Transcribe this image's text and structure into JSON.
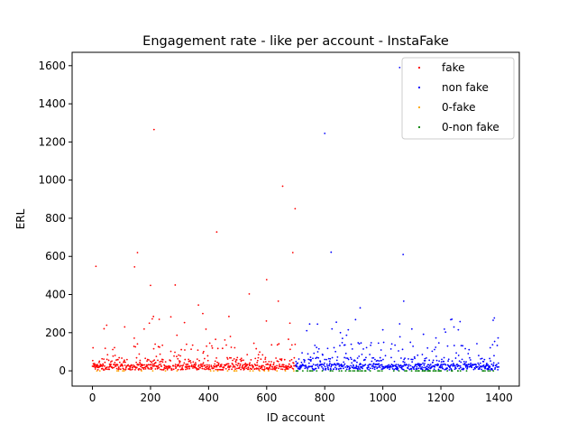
{
  "chart_data": {
    "type": "scatter",
    "title": "Engagement rate - like per account - InstaFake",
    "xlabel": "ID account",
    "ylabel": "ERL",
    "xlim": [
      -70,
      1470
    ],
    "ylim": [
      -80,
      1670
    ],
    "xticks": [
      "0",
      "200",
      "400",
      "600",
      "800",
      "1000",
      "1200",
      "1400"
    ],
    "yticks": [
      "0",
      "200",
      "400",
      "600",
      "800",
      "1000",
      "1200",
      "1400",
      "1600"
    ],
    "grid": false,
    "legend_position": "top-right",
    "series": [
      {
        "name": "fake",
        "color": "#ff0000",
        "x_range": [
          0,
          700
        ],
        "outliers": [
          [
            12,
            548
          ],
          [
            145,
            545
          ],
          [
            155,
            620
          ],
          [
            200,
            448
          ],
          [
            212,
            1265
          ],
          [
            210,
            285
          ],
          [
            230,
            270
          ],
          [
            270,
            283
          ],
          [
            285,
            450
          ],
          [
            365,
            345
          ],
          [
            428,
            728
          ],
          [
            540,
            403
          ],
          [
            600,
            478
          ],
          [
            640,
            365
          ],
          [
            655,
            968
          ],
          [
            690,
            620
          ],
          [
            698,
            850
          ],
          [
            680,
            250
          ],
          [
            470,
            285
          ],
          [
            380,
            300
          ]
        ]
      },
      {
        "name": "non fake",
        "color": "#0000ff",
        "x_range": [
          700,
          1400
        ],
        "outliers": [
          [
            800,
            1245
          ],
          [
            822,
            622
          ],
          [
            1058,
            1590
          ],
          [
            1070,
            610
          ],
          [
            1072,
            365
          ],
          [
            922,
            330
          ],
          [
            1380,
            265
          ],
          [
            775,
            245
          ],
          [
            840,
            255
          ],
          [
            1000,
            215
          ],
          [
            1260,
            215
          ]
        ]
      },
      {
        "name": "0-fake",
        "color": "#ffa500",
        "x_range": [
          0,
          700
        ]
      },
      {
        "name": "0-non fake",
        "color": "#008000",
        "x_range": [
          700,
          1400
        ]
      }
    ]
  }
}
